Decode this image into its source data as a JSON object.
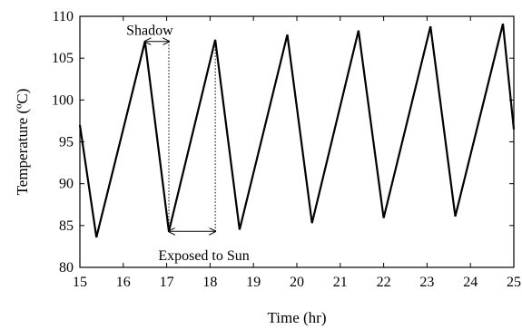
{
  "chart_data": {
    "type": "line",
    "xlabel": "Time (hr)",
    "ylabel": "Temperature (ºC)",
    "xlim": [
      15,
      25
    ],
    "ylim": [
      80,
      110
    ],
    "xticks": [
      15,
      16,
      17,
      18,
      19,
      20,
      21,
      22,
      23,
      24,
      25
    ],
    "yticks": [
      80,
      85,
      90,
      95,
      100,
      105,
      110
    ],
    "grid": false,
    "series": [
      {
        "color": "#000000",
        "x": [
          15.0,
          15.38,
          16.5,
          17.05,
          18.12,
          18.68,
          19.78,
          20.35,
          21.42,
          22.0,
          23.08,
          23.65,
          24.75,
          25.0
        ],
        "y": [
          97.0,
          83.6,
          107.0,
          84.3,
          107.2,
          84.5,
          107.8,
          85.3,
          108.3,
          85.9,
          108.8,
          86.1,
          109.1,
          96.5
        ]
      }
    ],
    "annotations": [
      {
        "text": "Shadow",
        "x_from": 16.5,
        "x_to": 17.05,
        "y": 107.0
      },
      {
        "text": "Exposed to Sun",
        "x_from": 17.05,
        "x_to": 18.12,
        "y": 84.3
      }
    ]
  }
}
